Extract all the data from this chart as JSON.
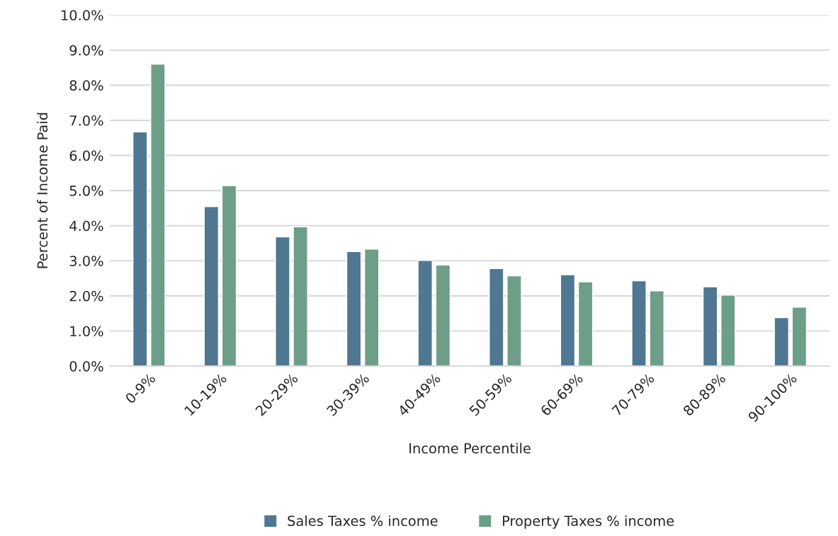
{
  "chart_data": {
    "type": "bar",
    "xlabel": "Income Percentile",
    "ylabel": "Percent of Income Paid",
    "categories": [
      "0-9%",
      "10-19%",
      "20-29%",
      "30-39%",
      "40-49%",
      "50-59%",
      "60-69%",
      "70-79%",
      "80-89%",
      "90-100%"
    ],
    "series": [
      {
        "name": "Sales Taxes % income",
        "color": "#4f7792",
        "values": [
          6.67,
          4.54,
          3.68,
          3.26,
          3.01,
          2.78,
          2.6,
          2.43,
          2.26,
          1.38
        ]
      },
      {
        "name": "Property Taxes % income",
        "color": "#6d9e87",
        "values": [
          8.6,
          5.14,
          3.97,
          3.33,
          2.88,
          2.57,
          2.4,
          2.14,
          2.02,
          1.68
        ]
      }
    ],
    "ylim": [
      0,
      10
    ],
    "yticks": [
      {
        "value": 0,
        "label": "0.0%"
      },
      {
        "value": 1,
        "label": "1.0%"
      },
      {
        "value": 2,
        "label": "2.0%"
      },
      {
        "value": 3,
        "label": "3.0%"
      },
      {
        "value": 4,
        "label": "4.0%"
      },
      {
        "value": 5,
        "label": "5.0%"
      },
      {
        "value": 6,
        "label": "6.0%"
      },
      {
        "value": 7,
        "label": "7.0%"
      },
      {
        "value": 8,
        "label": "8.0%"
      },
      {
        "value": 9,
        "label": "9.0%"
      },
      {
        "value": 10,
        "label": "10.0%"
      }
    ],
    "grid": "y",
    "legend": "bottom"
  }
}
